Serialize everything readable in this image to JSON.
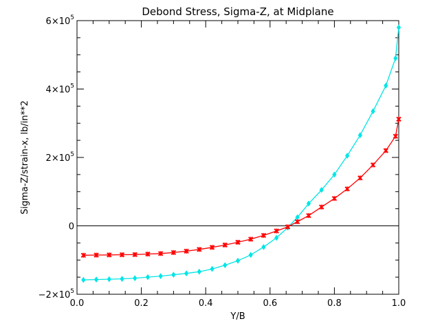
{
  "chart_data": {
    "type": "line",
    "title": "Debond Stress, Sigma-Z, at Midplane",
    "xlabel": "Y/B",
    "ylabel": "Sigma-Z/strain-x,   lb/in**2",
    "xlim": [
      0.0,
      1.0
    ],
    "ylim": [
      -200000,
      600000
    ],
    "x_ticks": [
      {
        "value": 0.0,
        "label": "0.0"
      },
      {
        "value": 0.2,
        "label": "0.2"
      },
      {
        "value": 0.4,
        "label": "0.4"
      },
      {
        "value": 0.6,
        "label": "0.6"
      },
      {
        "value": 0.8,
        "label": "0.8"
      },
      {
        "value": 1.0,
        "label": "1.0"
      }
    ],
    "y_ticks": [
      {
        "value": -200000,
        "mantissa": "−2×10",
        "exp": "5"
      },
      {
        "value": 0,
        "mantissa": "0",
        "exp": ""
      },
      {
        "value": 200000,
        "mantissa": "2×10",
        "exp": "5"
      },
      {
        "value": 400000,
        "mantissa": "4×10",
        "exp": "5"
      },
      {
        "value": 600000,
        "mantissa": "6×10",
        "exp": "5"
      }
    ],
    "grid": false,
    "zero_line": true,
    "series": [
      {
        "color": "#00e5e5",
        "marker": "diamond",
        "x": [
          0.02,
          0.06,
          0.1,
          0.14,
          0.18,
          0.22,
          0.26,
          0.3,
          0.34,
          0.38,
          0.42,
          0.46,
          0.5,
          0.54,
          0.58,
          0.62,
          0.655,
          0.685,
          0.72,
          0.76,
          0.8,
          0.84,
          0.88,
          0.92,
          0.96,
          0.99,
          1.0
        ],
        "y": [
          -158000,
          -157000,
          -156000,
          -155000,
          -153000,
          -150000,
          -147000,
          -143000,
          -139000,
          -134000,
          -126000,
          -115000,
          -102000,
          -85000,
          -62000,
          -35000,
          -5000,
          25000,
          65000,
          105000,
          150000,
          205000,
          265000,
          335000,
          410000,
          490000,
          580000
        ]
      },
      {
        "color": "#ff0000",
        "marker": "x",
        "x": [
          0.02,
          0.06,
          0.1,
          0.14,
          0.18,
          0.22,
          0.26,
          0.3,
          0.34,
          0.38,
          0.42,
          0.46,
          0.5,
          0.54,
          0.58,
          0.62,
          0.655,
          0.685,
          0.72,
          0.76,
          0.8,
          0.84,
          0.88,
          0.92,
          0.96,
          0.99,
          1.0
        ],
        "y": [
          -86000,
          -85500,
          -85000,
          -84500,
          -84000,
          -82500,
          -81000,
          -78000,
          -74000,
          -69000,
          -63000,
          -56000,
          -48000,
          -39000,
          -28000,
          -15000,
          -3000,
          12000,
          30000,
          55000,
          80000,
          108000,
          140000,
          178000,
          220000,
          262000,
          312000
        ]
      }
    ]
  }
}
